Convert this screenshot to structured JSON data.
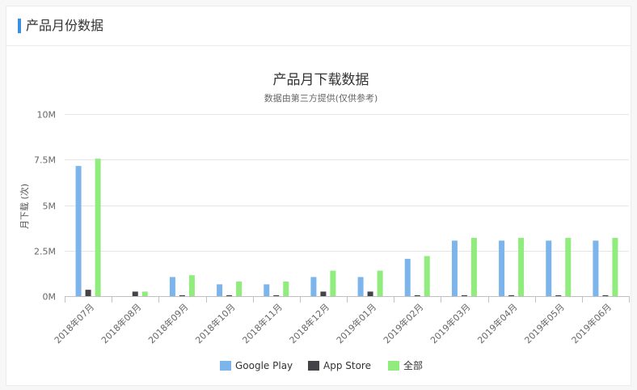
{
  "page": {
    "section_title": "产品月份数据"
  },
  "chart_data": {
    "type": "bar",
    "title": "产品月下载数据",
    "subtitle": "数据由第三方提供(仅供参考)",
    "ylabel": "月下载 (次)",
    "xlabel": "",
    "ylim": [
      0,
      10000000
    ],
    "yticks": [
      {
        "value": 0,
        "label": "0M"
      },
      {
        "value": 2500000,
        "label": "2.5M"
      },
      {
        "value": 5000000,
        "label": "5M"
      },
      {
        "value": 7500000,
        "label": "7.5M"
      },
      {
        "value": 10000000,
        "label": "10M"
      }
    ],
    "grid": true,
    "legend_position": "bottom",
    "categories": [
      "2018年07月",
      "2018年08月",
      "2018年09月",
      "2018年10月",
      "2018年11月",
      "2018年12月",
      "2019年01月",
      "2019年02月",
      "2019年03月",
      "2019年04月",
      "2019年05月",
      "2019年06月"
    ],
    "series": [
      {
        "name": "Google Play",
        "color": "#7cb5ec",
        "values": [
          7150000,
          0,
          1050000,
          650000,
          650000,
          1050000,
          1050000,
          2050000,
          3050000,
          3050000,
          3050000,
          3050000
        ]
      },
      {
        "name": "App Store",
        "color": "#434348",
        "values": [
          350000,
          250000,
          50000,
          50000,
          50000,
          250000,
          250000,
          50000,
          50000,
          50000,
          50000,
          50000
        ]
      },
      {
        "name": "全部",
        "color": "#90ed7d",
        "values": [
          7550000,
          250000,
          1150000,
          800000,
          800000,
          1400000,
          1400000,
          2200000,
          3200000,
          3200000,
          3200000,
          3200000
        ]
      }
    ]
  }
}
